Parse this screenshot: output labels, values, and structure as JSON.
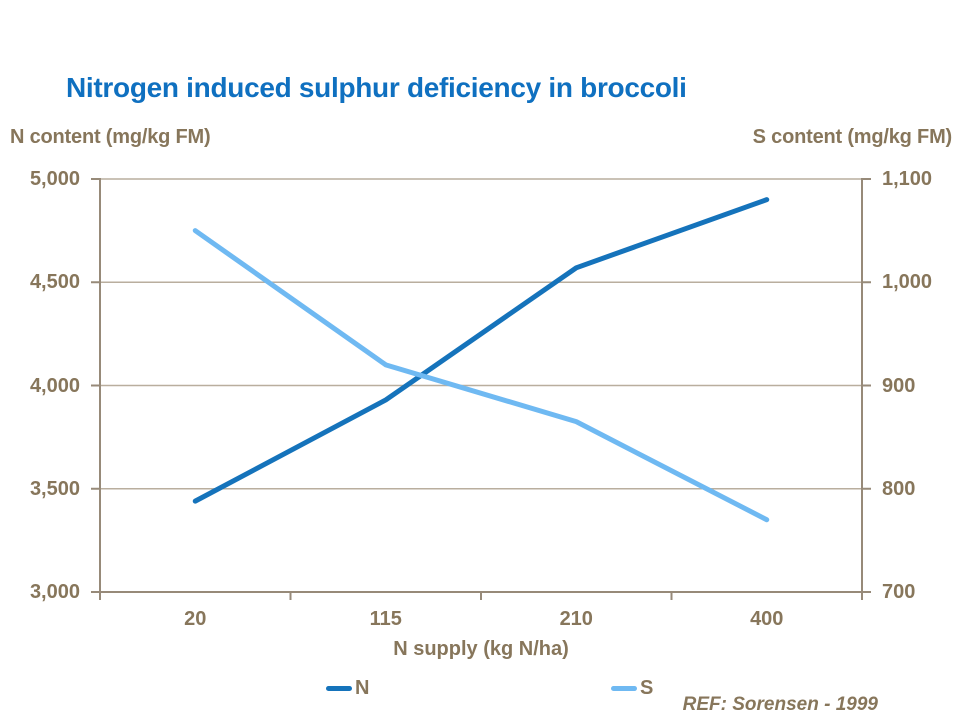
{
  "title": "Nitrogen induced sulphur deficiency in broccoli",
  "ref": "REF: Sorensen - 1999",
  "colors": {
    "title": "#0F70C0",
    "text": "#87765B",
    "axis": "#978A79",
    "grid": "#B9AE9E",
    "n_line": "#1573BB",
    "s_line": "#6FB9F2",
    "background": "#FFFFFF"
  },
  "chart_data": {
    "type": "line",
    "title": "Nitrogen induced sulphur deficiency in broccoli",
    "grid": true,
    "legend_position": "bottom",
    "x_axis": {
      "label": "N supply (kg N/ha)",
      "categories": [
        "20",
        "115",
        "210",
        "400"
      ]
    },
    "y_left": {
      "label": "N content (mg/kg FM)",
      "min": 3000,
      "max": 5000,
      "step": 500,
      "tick_labels": [
        "5,000",
        "4,500",
        "4,000",
        "3,500",
        "3,000"
      ]
    },
    "y_right": {
      "label": "S content (mg/kg FM)",
      "min": 700,
      "max": 1100,
      "step": 100,
      "tick_labels": [
        "1,100",
        "1,000",
        "900",
        "800",
        "700"
      ]
    },
    "series": [
      {
        "name": "N",
        "axis": "left",
        "color": "#1573BB",
        "values": [
          3440,
          3930,
          4570,
          4900
        ]
      },
      {
        "name": "S",
        "axis": "right",
        "color": "#6FB9F2",
        "values": [
          1050,
          920,
          865,
          770
        ]
      }
    ]
  }
}
